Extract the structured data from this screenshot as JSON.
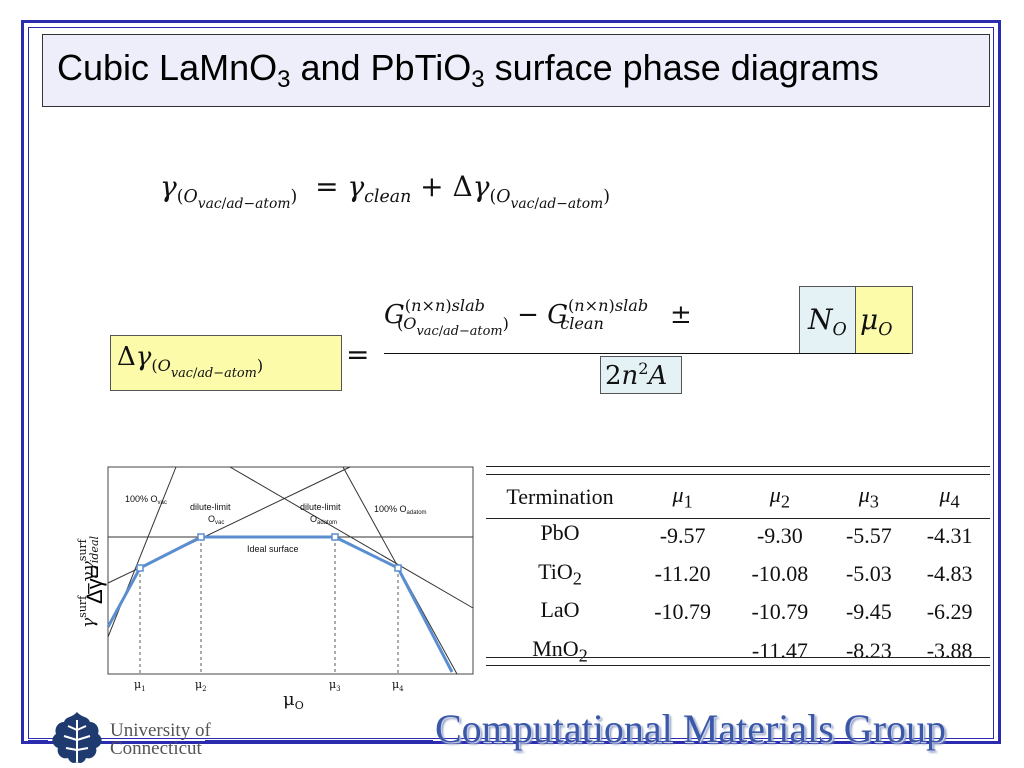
{
  "slide": {
    "title_a": "Cubic LaMnO",
    "title_sub1": "3",
    "title_b": " and PbTiO",
    "title_sub2": "3",
    "title_c": " surface phase diagrams"
  },
  "diagram": {
    "label_100_ovac": "100% O",
    "label_100_ovac_sub": "vac",
    "label_dilute_ovac_1": "dilute-limit",
    "label_dilute_ovac_2": "O",
    "label_dilute_ovac_sub": "vac",
    "label_dilute_oad_1": "dilute-limit",
    "label_dilute_oad_2": "O",
    "label_dilute_oad_sub": "adatom",
    "label_100_oad": "100% O",
    "label_100_oad_sub": "adatom",
    "label_ideal": "Ideal surface",
    "y_label": "γ",
    "y_label_sup": "surf",
    "y_label_mid": "−γ",
    "y_label_sub": "ideal",
    "dy_label": "Δγ=",
    "x_label": "μ",
    "x_label_sub": "O",
    "mu_ticks": [
      {
        "main": "μ",
        "sub": "1"
      },
      {
        "main": "μ",
        "sub": "2"
      },
      {
        "main": "μ",
        "sub": "3"
      },
      {
        "main": "μ",
        "sub": "4"
      }
    ]
  },
  "table": {
    "headers": [
      "Termination",
      "μ",
      "μ",
      "μ",
      "μ"
    ],
    "header_subs": [
      "",
      "1",
      "2",
      "3",
      "4"
    ],
    "rows": [
      {
        "name": "PbO",
        "sub": "",
        "v1": "-9.57",
        "v2": "-9.30",
        "v3": "-5.57",
        "v4": "-4.31"
      },
      {
        "name": "TiO",
        "sub": "2",
        "v1": "-11.20",
        "v2": "-10.08",
        "v3": "-5.03",
        "v4": "-4.83"
      },
      {
        "name": "LaO",
        "sub": "",
        "v1": "-10.79",
        "v2": "-10.79",
        "v3": "-9.45",
        "v4": "-6.29"
      },
      {
        "name": "MnO",
        "sub": "2",
        "v1": "",
        "v2": "-11.47",
        "v3": "-8.23",
        "v4": "-3.88"
      }
    ]
  },
  "footer": {
    "uc_line1": "University of",
    "uc_line2": "Connecticut",
    "group_name": "Computational Materials Group"
  },
  "colors": {
    "frame": "#2b2bb0",
    "curve": "#5b8ed0",
    "highlight_yellow": "#fbfbaa",
    "highlight_blue": "#e4f2f6",
    "footer_text": "#3b57a8"
  }
}
